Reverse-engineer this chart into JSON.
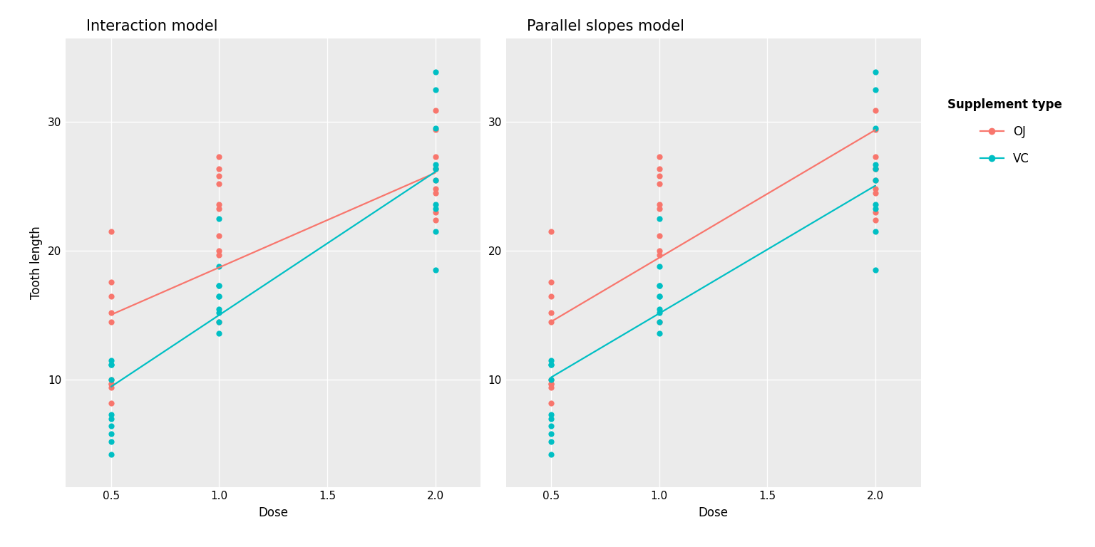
{
  "title_left": "Interaction model",
  "title_right": "Parallel slopes model",
  "xlabel": "Dose",
  "ylabel": "Tooth length",
  "legend_title": "Supplement type",
  "legend_labels": [
    "OJ",
    "VC"
  ],
  "color_OJ": "#F8766D",
  "color_VC": "#00BFC4",
  "bg_color": "#EBEBEB",
  "fig_bg": "#FFFFFF",
  "ylim": [
    1.7,
    36.5
  ],
  "xlim": [
    0.29,
    2.21
  ],
  "yticks": [
    10,
    20,
    30
  ],
  "xticks": [
    0.5,
    1.0,
    1.5,
    2.0
  ],
  "xticklabels": [
    "0.5",
    "1.0",
    "1.5",
    "2.0"
  ],
  "yticklabels": [
    "10",
    "20",
    "30"
  ],
  "OJ_dose": [
    0.5,
    0.5,
    0.5,
    0.5,
    0.5,
    0.5,
    0.5,
    0.5,
    0.5,
    0.5,
    1.0,
    1.0,
    1.0,
    1.0,
    1.0,
    1.0,
    1.0,
    1.0,
    1.0,
    1.0,
    2.0,
    2.0,
    2.0,
    2.0,
    2.0,
    2.0,
    2.0,
    2.0,
    2.0,
    2.0
  ],
  "OJ_len": [
    15.2,
    21.5,
    17.6,
    9.7,
    14.5,
    10.0,
    8.2,
    9.4,
    16.5,
    9.7,
    19.7,
    23.3,
    23.6,
    26.4,
    20.0,
    25.2,
    25.8,
    21.2,
    14.5,
    27.3,
    25.5,
    26.4,
    22.4,
    24.5,
    24.8,
    30.9,
    26.4,
    27.3,
    29.4,
    23.0
  ],
  "VC_dose": [
    0.5,
    0.5,
    0.5,
    0.5,
    0.5,
    0.5,
    0.5,
    0.5,
    0.5,
    0.5,
    1.0,
    1.0,
    1.0,
    1.0,
    1.0,
    1.0,
    1.0,
    1.0,
    1.0,
    1.0,
    2.0,
    2.0,
    2.0,
    2.0,
    2.0,
    2.0,
    2.0,
    2.0,
    2.0,
    2.0
  ],
  "VC_len": [
    4.2,
    11.5,
    7.3,
    5.8,
    6.4,
    10.0,
    11.2,
    11.2,
    5.2,
    7.0,
    16.5,
    16.5,
    15.2,
    17.3,
    22.5,
    17.3,
    13.6,
    14.5,
    18.8,
    15.5,
    23.6,
    18.5,
    33.9,
    25.5,
    26.4,
    32.5,
    26.7,
    21.5,
    23.3,
    29.5
  ],
  "interaction_OJ_line_x": [
    0.5,
    2.0
  ],
  "interaction_OJ_line_y": [
    15.05,
    26.06
  ],
  "interaction_VC_line_x": [
    0.5,
    2.0
  ],
  "interaction_VC_line_y": [
    9.47,
    26.14
  ],
  "parallel_OJ_line_x": [
    0.5,
    2.0
  ],
  "parallel_OJ_line_y": [
    14.52,
    29.39
  ],
  "parallel_VC_line_x": [
    0.5,
    2.0
  ],
  "parallel_VC_line_y": [
    10.2,
    25.07
  ],
  "grid_color": "#FFFFFF",
  "title_fontsize": 15,
  "axis_label_fontsize": 12,
  "tick_fontsize": 11,
  "legend_title_fontsize": 12,
  "legend_fontsize": 12,
  "dot_size": 35,
  "dot_alpha": 1.0,
  "line_width": 1.6
}
